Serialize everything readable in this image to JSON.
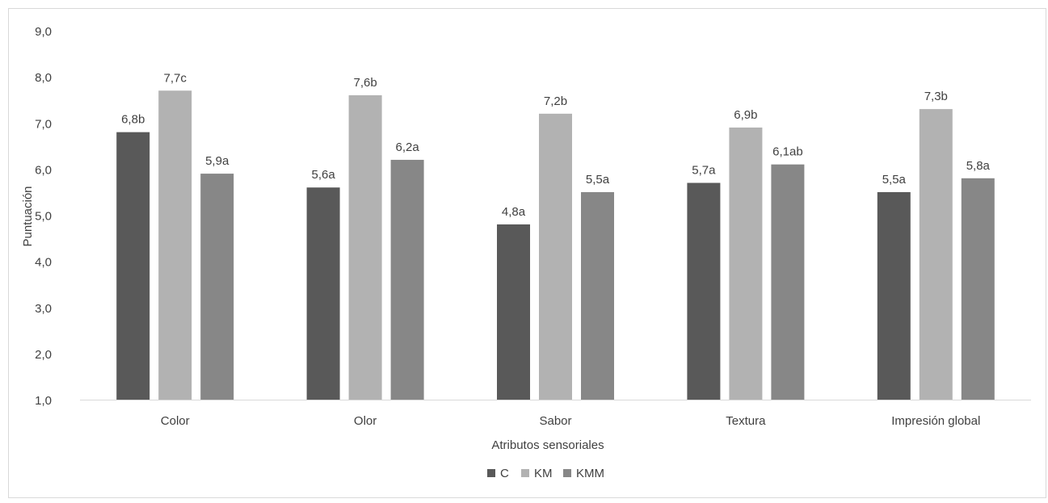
{
  "chart_data": {
    "type": "bar",
    "title": "",
    "xlabel": "Atributos sensoriales",
    "ylabel": "Puntuación",
    "ylim": [
      1,
      9
    ],
    "yticks": [
      "1,0",
      "2,0",
      "3,0",
      "4,0",
      "5,0",
      "6,0",
      "7,0",
      "8,0",
      "9,0"
    ],
    "grid": false,
    "legend_position": "bottom",
    "categories": [
      "Color",
      "Olor",
      "Sabor",
      "Textura",
      "Impresión global"
    ],
    "series": [
      {
        "name": "C",
        "color": "#595959",
        "values": [
          6.8,
          5.6,
          4.8,
          5.7,
          5.5
        ],
        "labels": [
          "6,8b",
          "5,6a",
          "4,8a",
          "5,7a",
          "5,5a"
        ]
      },
      {
        "name": "KM",
        "color": "#b2b2b2",
        "values": [
          7.7,
          7.6,
          7.2,
          6.9,
          7.3
        ],
        "labels": [
          "7,7c",
          "7,6b",
          "7,2b",
          "6,9b",
          "7,3b"
        ]
      },
      {
        "name": "KMM",
        "color": "#878787",
        "values": [
          5.9,
          6.2,
          5.5,
          6.1,
          5.8
        ],
        "labels": [
          "5,9a",
          "6,2a",
          "5,5a",
          "6,1ab",
          "5,8a"
        ]
      }
    ]
  }
}
